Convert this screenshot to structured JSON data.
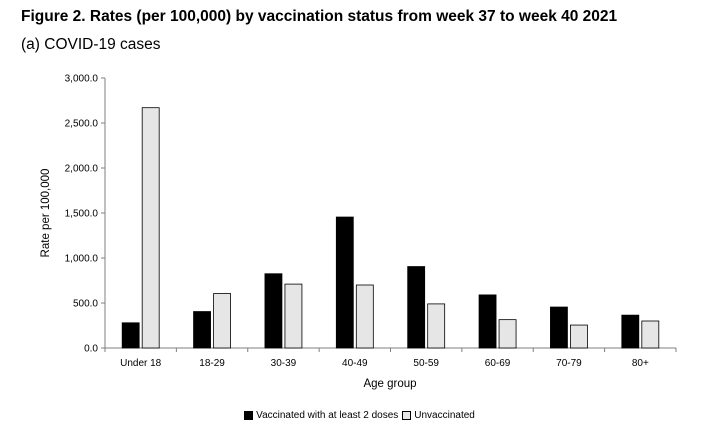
{
  "figure": {
    "title": "Figure 2. Rates (per 100,000) by vaccination status from week 37 to week 40 2021",
    "subtitle": "(a) COVID-19 cases"
  },
  "chart_data": {
    "type": "bar",
    "title": "",
    "xlabel": "Age group",
    "ylabel": "Rate per 100,000",
    "ylim": [
      0,
      3000
    ],
    "yticks": [
      0,
      500,
      1000,
      1500,
      2000,
      2500,
      3000
    ],
    "ytick_labels": [
      "0.0",
      "500.0",
      "1,000.0",
      "1,500.0",
      "2,000.0",
      "2,500.0",
      "3,000.0"
    ],
    "categories": [
      "Under 18",
      "18-29",
      "30-39",
      "40-49",
      "50-59",
      "60-69",
      "70-79",
      "80+"
    ],
    "series": [
      {
        "name": "Vaccinated with at least 2 doses",
        "color": "#000000",
        "values": [
          280,
          405,
          825,
          1455,
          905,
          590,
          455,
          365
        ]
      },
      {
        "name": "Unvaccinated",
        "color": "#e6e6e6",
        "values": [
          2670,
          605,
          710,
          700,
          490,
          315,
          255,
          300
        ]
      }
    ],
    "grid": false,
    "legend": "bottom"
  }
}
